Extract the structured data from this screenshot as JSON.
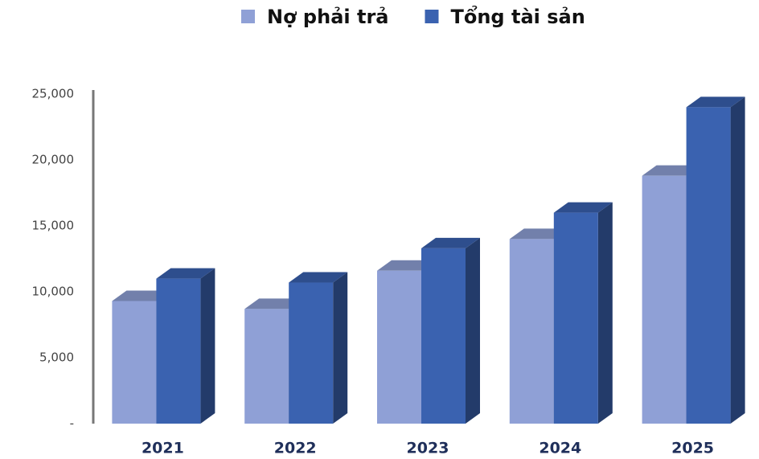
{
  "chart_data": {
    "type": "bar3d",
    "categories": [
      "2021",
      "2022",
      "2023",
      "2024",
      "2025"
    ],
    "series": [
      {
        "name": "Nợ phải trả",
        "color": "#8fa0d6",
        "values": [
          9300,
          8700,
          11600,
          14000,
          18800
        ]
      },
      {
        "name": "Tổng tài sản",
        "color": "#3a62b0",
        "values": [
          11000,
          10700,
          13300,
          16000,
          24000
        ]
      }
    ],
    "ylim": [
      0,
      25000
    ],
    "yticks": [
      {
        "value": 0,
        "label": "-"
      },
      {
        "value": 5000,
        "label": "5,000"
      },
      {
        "value": 10000,
        "label": "10,000"
      },
      {
        "value": 15000,
        "label": "15,000"
      },
      {
        "value": 20000,
        "label": "20,000"
      },
      {
        "value": 25000,
        "label": "25,000"
      }
    ],
    "legend": "top"
  }
}
